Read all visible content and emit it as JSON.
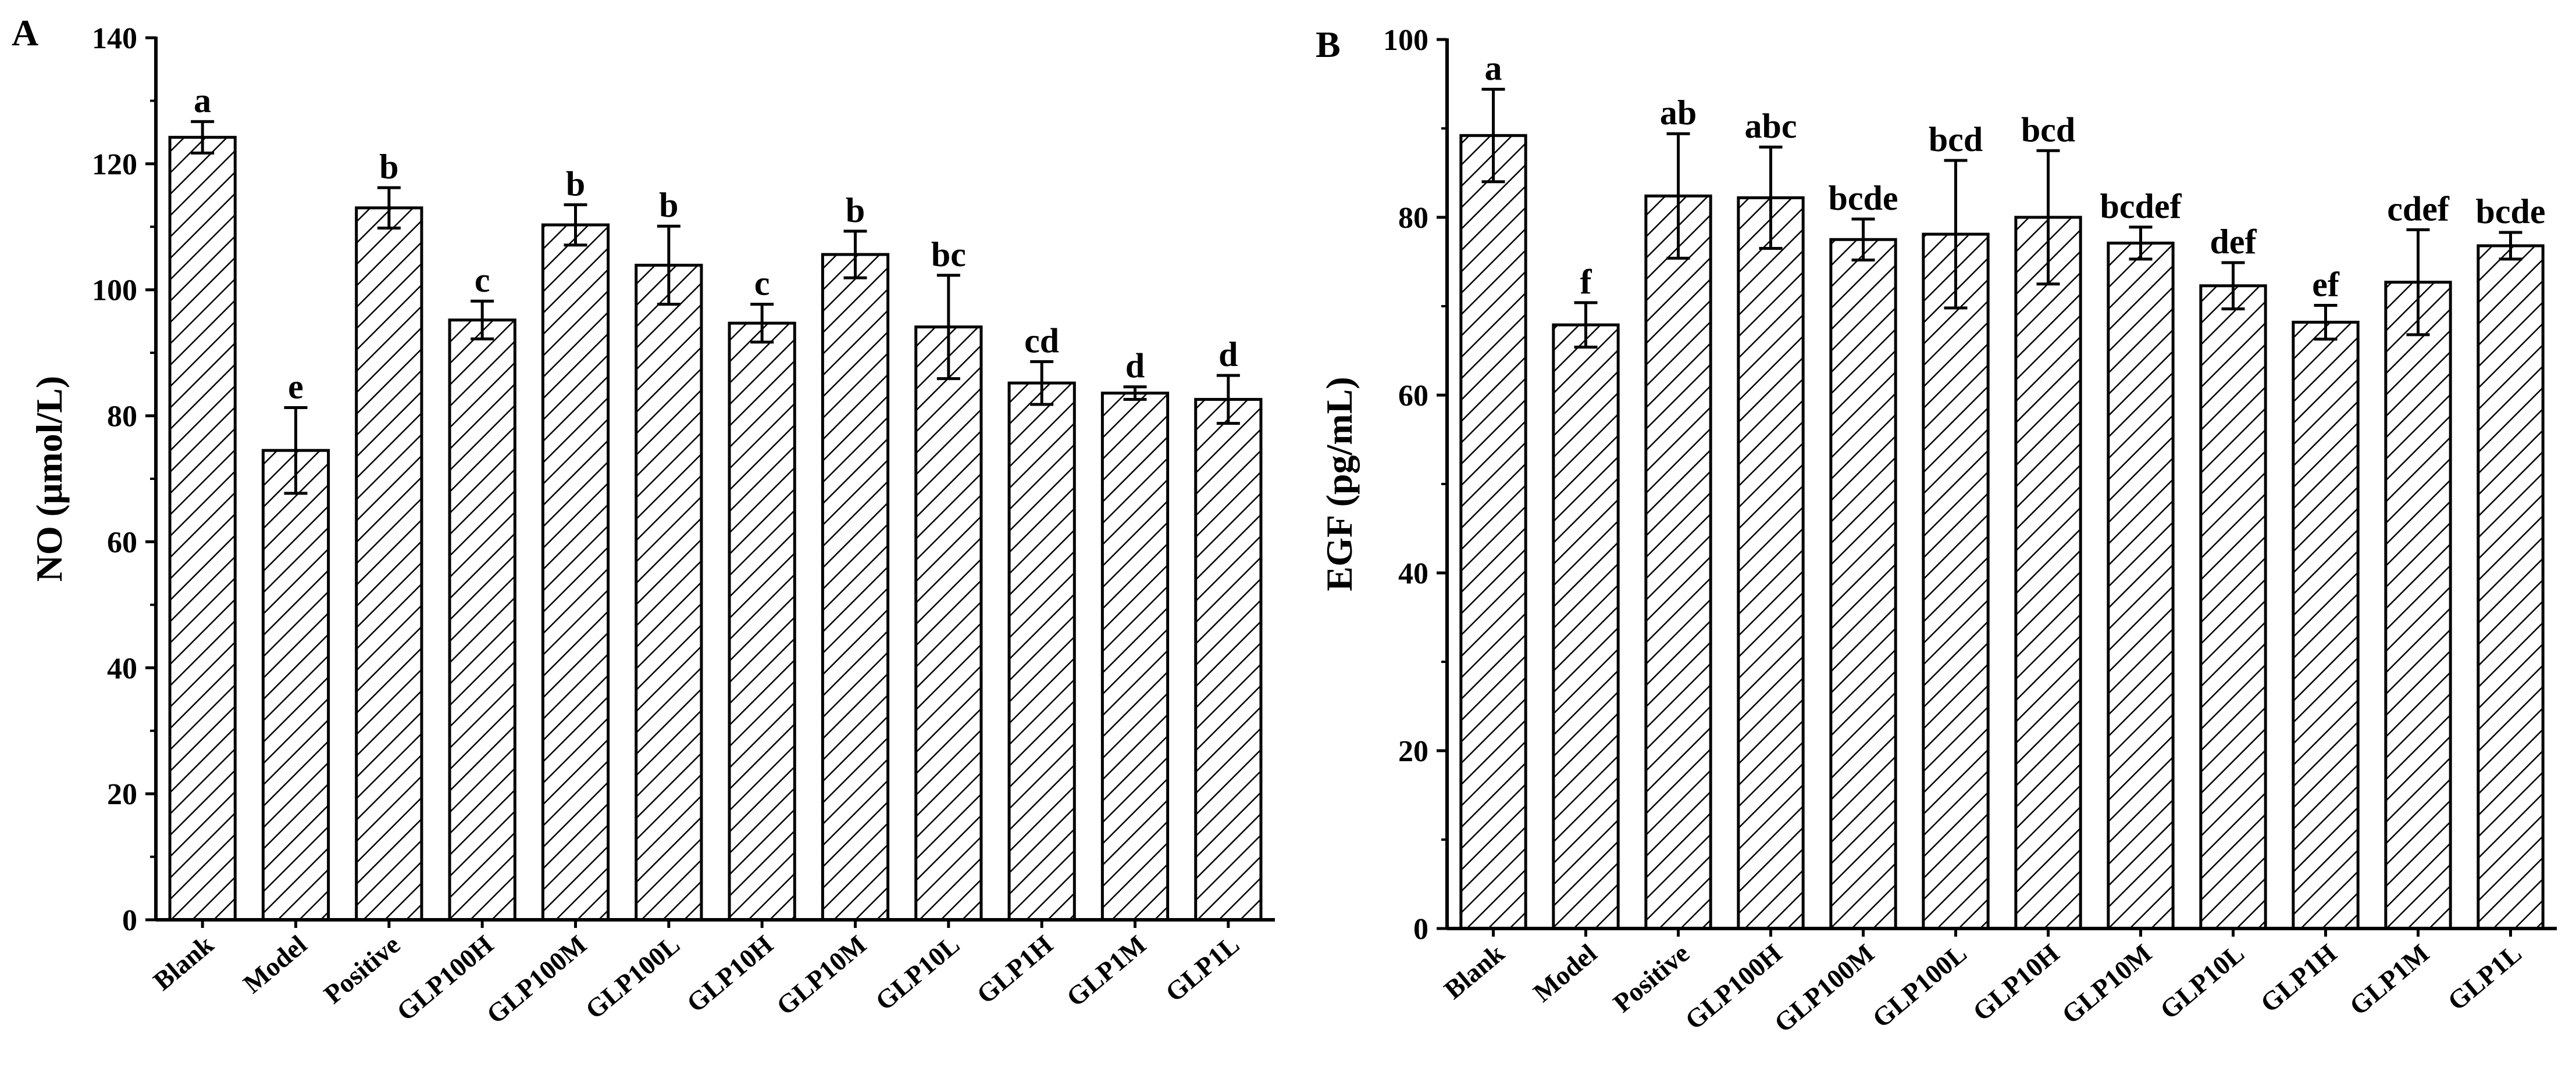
{
  "chart_data": [
    {
      "panel_label": "A",
      "type": "bar",
      "pattern": "diagonal-hatch",
      "categories": [
        "Blank",
        "Model",
        "Positive",
        "GLP100H",
        "GLP100M",
        "GLP100L",
        "GLP10H",
        "GLP10M",
        "GLP10L",
        "GLP1H",
        "GLP1M",
        "GLP1L"
      ],
      "values": [
        124.2,
        74.5,
        113.0,
        95.2,
        110.3,
        103.9,
        94.7,
        105.6,
        94.1,
        85.2,
        83.6,
        82.6
      ],
      "errors": [
        2.5,
        6.8,
        3.2,
        3.0,
        3.2,
        6.2,
        3.0,
        3.7,
        8.2,
        3.4,
        1.0,
        3.8
      ],
      "significance": [
        "a",
        "e",
        "b",
        "c",
        "b",
        "b",
        "c",
        "b",
        "bc",
        "cd",
        "d",
        "d"
      ],
      "ylabel": "NO (μmol/L)",
      "xlabel": "",
      "ylim": [
        0,
        140
      ],
      "yticks": [
        0,
        20,
        40,
        60,
        80,
        100,
        120,
        140
      ],
      "grid": false,
      "legend": "none"
    },
    {
      "panel_label": "B",
      "type": "bar",
      "pattern": "diagonal-hatch",
      "categories": [
        "Blank",
        "Model",
        "Positive",
        "GLP100H",
        "GLP100M",
        "GLP100L",
        "GLP10H",
        "GLP10M",
        "GLP10L",
        "GLP1H",
        "GLP1M",
        "GLP1L"
      ],
      "values": [
        89.2,
        67.9,
        82.4,
        82.2,
        77.5,
        78.1,
        80.0,
        77.1,
        72.3,
        68.2,
        72.7,
        76.8
      ],
      "errors": [
        5.2,
        2.5,
        7.0,
        5.7,
        2.3,
        8.3,
        7.5,
        1.8,
        2.6,
        1.9,
        5.9,
        1.5
      ],
      "significance": [
        "a",
        "f",
        "ab",
        "abc",
        "bcde",
        "bcd",
        "bcd",
        "bcdef",
        "def",
        "ef",
        "cdef",
        "bcde"
      ],
      "ylabel": "EGF (pg/mL)",
      "xlabel": "",
      "ylim": [
        0,
        100
      ],
      "yticks": [
        0,
        20,
        40,
        60,
        80,
        100
      ],
      "grid": false,
      "legend": "none"
    }
  ]
}
